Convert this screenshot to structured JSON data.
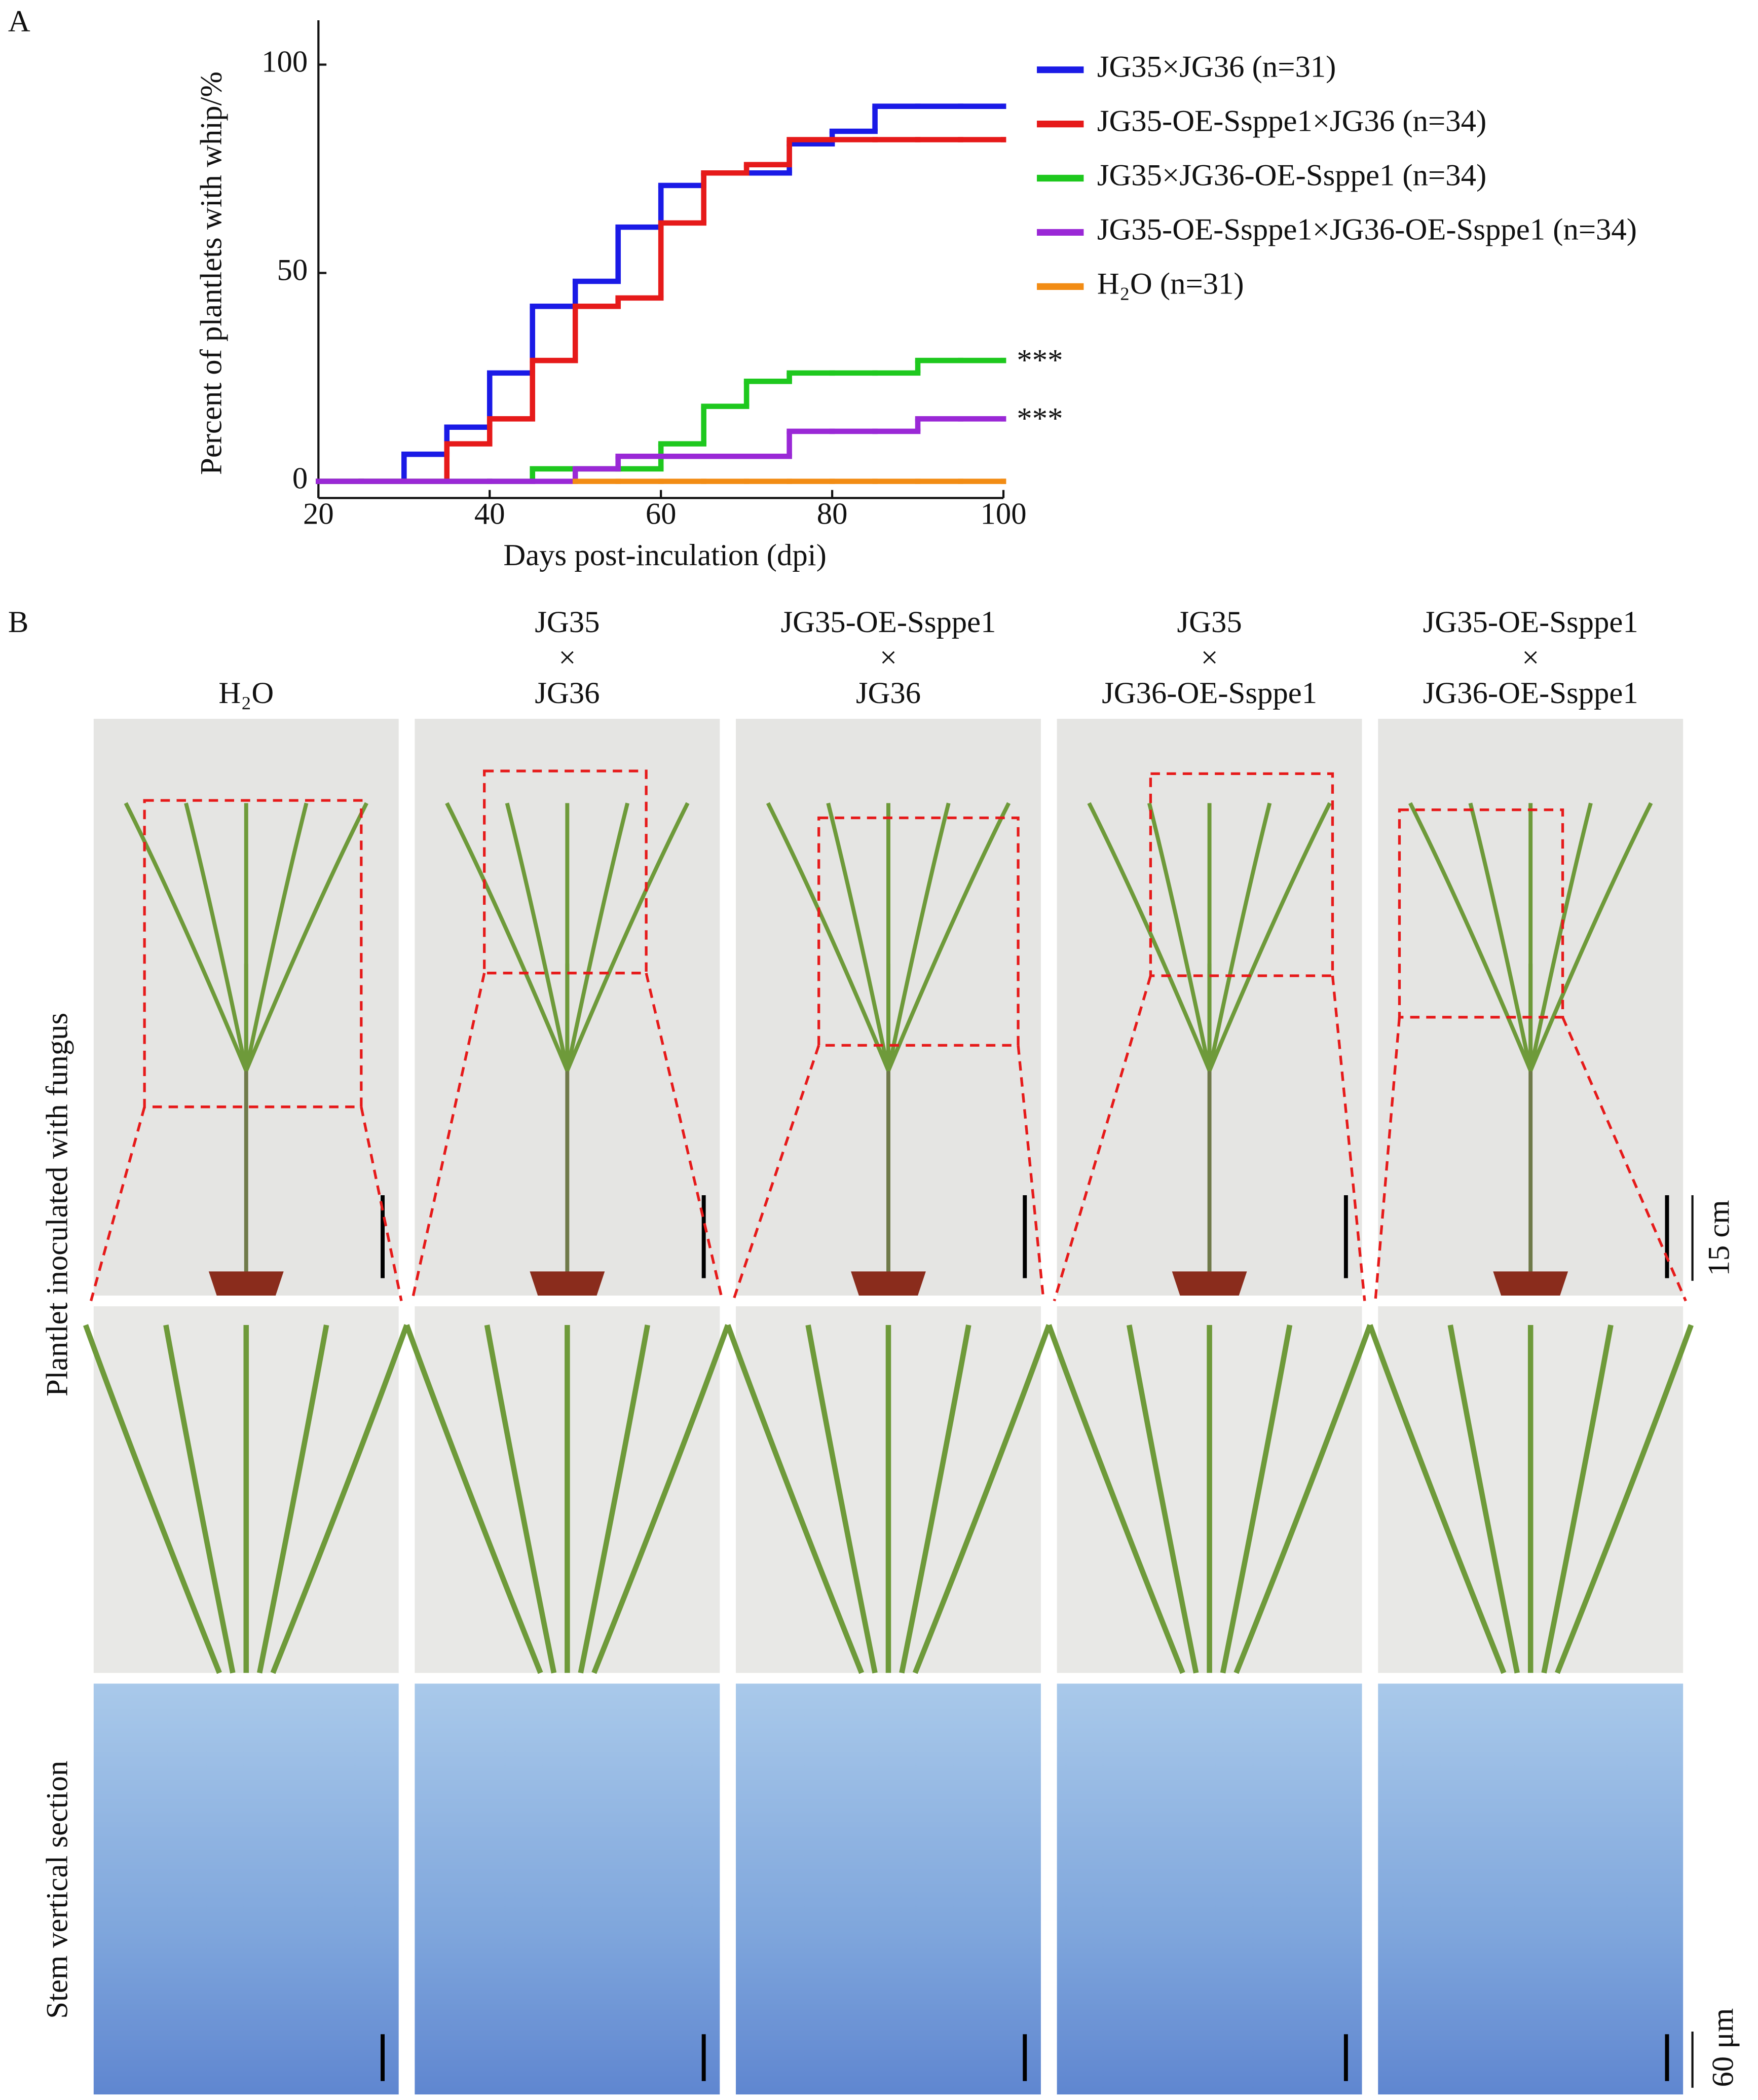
{
  "chart_data": {
    "type": "line",
    "step": true,
    "xlabel": "Days post-inculation (dpi)",
    "ylabel": "Percent of plantlets with whip/%",
    "x": [
      20,
      25,
      30,
      35,
      40,
      45,
      50,
      55,
      60,
      65,
      70,
      75,
      80,
      85,
      90,
      95,
      100
    ],
    "xlim": [
      20,
      100
    ],
    "xticks": [
      20,
      40,
      60,
      80,
      100
    ],
    "ylim": [
      -4,
      110
    ],
    "yticks": [
      0,
      50,
      100
    ],
    "series": [
      {
        "name": "JG35×JG36 (n=31)",
        "color": "#1a1ae6",
        "values": [
          0,
          0,
          6.5,
          13,
          26,
          42,
          48,
          61,
          71,
          74,
          74,
          81,
          84,
          90,
          90,
          90,
          90
        ]
      },
      {
        "name": "JG35-OE-Ssppe1×JG36 (n=34)",
        "color": "#e61a1a",
        "values": [
          0,
          0,
          0,
          9,
          15,
          29,
          42,
          44,
          62,
          74,
          76,
          82,
          82,
          82,
          82,
          82,
          82
        ]
      },
      {
        "name": "JG35×JG36-OE-Ssppe1 (n=34)",
        "color": "#1ec81e",
        "annotation": "***",
        "values": [
          0,
          0,
          0,
          0,
          0,
          3,
          3,
          3,
          9,
          18,
          24,
          26,
          26,
          26,
          29,
          29,
          29
        ]
      },
      {
        "name": "JG35-OE-Ssppe1×JG36-OE-Ssppe1 (n=34)",
        "color": "#9a28d6",
        "annotation": "***",
        "values": [
          0,
          0,
          0,
          0,
          0,
          0,
          3,
          6,
          6,
          6,
          6,
          12,
          12,
          12,
          15,
          15,
          15
        ]
      },
      {
        "name": "H₂O (n=31)",
        "color": "#f28c14",
        "values": [
          null,
          null,
          null,
          null,
          null,
          null,
          0,
          0,
          0,
          0,
          0,
          0,
          0,
          0,
          0,
          0,
          0
        ]
      }
    ]
  },
  "panel_labels": [
    "A",
    "B"
  ],
  "columns": [
    {
      "header": [
        "H₂O"
      ]
    },
    {
      "header": [
        "JG35",
        "×",
        "JG36"
      ]
    },
    {
      "header": [
        "JG35-OE-Ssppe1",
        "×",
        "JG36"
      ]
    },
    {
      "header": [
        "JG35",
        "×",
        "JG36-OE-Ssppe1"
      ]
    },
    {
      "header": [
        "JG35-OE-Ssppe1",
        "×",
        "JG36-OE-Ssppe1"
      ]
    }
  ],
  "row_labels": [
    "Plantlet inoculated with fungus",
    "Stem vertical section"
  ],
  "scale_bars": [
    "15 cm",
    "60 μm"
  ]
}
